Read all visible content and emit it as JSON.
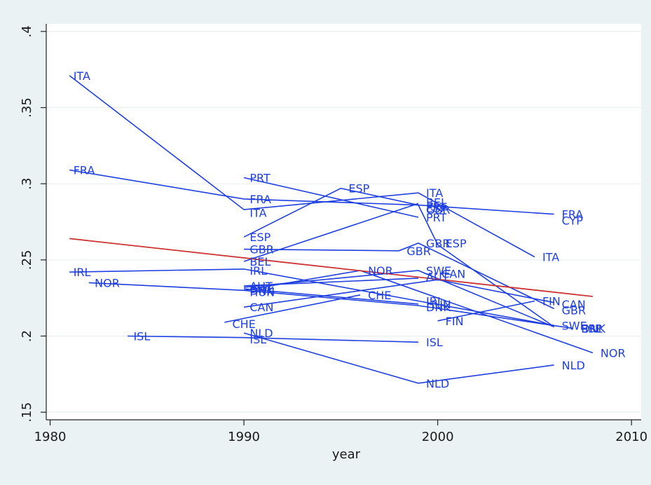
{
  "chart_data": {
    "type": "line",
    "title": "",
    "xlabel": "year",
    "ylabel": "",
    "xlim": [
      1979.8,
      2010.5
    ],
    "ylim": [
      0.145,
      0.405
    ],
    "xticks": [
      1980,
      1990,
      2000,
      2010
    ],
    "xtick_labels": [
      "1980",
      "1990",
      "2000",
      "2010"
    ],
    "yticks": [
      0.15,
      0.2,
      0.25,
      0.3,
      0.35,
      0.4
    ],
    "ytick_labels": [
      ".15",
      ".2",
      ".25",
      ".3",
      ".35",
      ".4"
    ],
    "grid": "horizontal",
    "legend": "none",
    "colors": {
      "series": "#1f3fe0",
      "fit": "#cc3333",
      "plot_bg": "#ffffff",
      "outer_bg": "#eaf2f3",
      "grid": "#e8eef0"
    },
    "fit_line": {
      "x": [
        1981,
        2008
      ],
      "y": [
        0.264,
        0.226
      ]
    },
    "series": [
      {
        "name": "ITA",
        "x": [
          1981,
          1990,
          1999,
          2005
        ],
        "y": [
          0.371,
          0.283,
          0.294,
          0.252
        ]
      },
      {
        "name": "FRA",
        "x": [
          1981,
          1990,
          1999,
          2006
        ],
        "y": [
          0.309,
          0.29,
          0.286,
          0.28
        ]
      },
      {
        "name": "PRT",
        "x": [
          1990,
          1999
        ],
        "y": [
          0.304,
          0.278
        ]
      },
      {
        "name": "ESP",
        "x": [
          1990,
          1995,
          1999,
          2000,
          2006
        ],
        "y": [
          0.265,
          0.297,
          0.286,
          0.26,
          0.206
        ]
      },
      {
        "name": "GBR",
        "x": [
          1990,
          1998,
          1999,
          2006
        ],
        "y": [
          0.257,
          0.256,
          0.261,
          0.218
        ]
      },
      {
        "name": "BEL",
        "x": [
          1990,
          1999
        ],
        "y": [
          0.249,
          0.287
        ]
      },
      {
        "name": "IRL",
        "x": [
          1981,
          1990,
          1999,
          2006
        ],
        "y": [
          0.242,
          0.244,
          0.223,
          0.207
        ]
      },
      {
        "name": "NOR",
        "x": [
          1982,
          1990,
          1996,
          2008
        ],
        "y": [
          0.235,
          0.23,
          0.243,
          0.189
        ]
      },
      {
        "name": "AUT",
        "x": [
          1990,
          1999
        ],
        "y": [
          0.233,
          0.238
        ]
      },
      {
        "name": "HUN",
        "x": [
          1990,
          1999
        ],
        "y": [
          0.231,
          0.221
        ]
      },
      {
        "name": "CAN",
        "x": [
          1990,
          2000,
          2006
        ],
        "y": [
          0.219,
          0.237,
          0.222
        ]
      },
      {
        "name": "CHE",
        "x": [
          1989,
          1996
        ],
        "y": [
          0.209,
          0.227
        ]
      },
      {
        "name": "SWE",
        "x": [
          1990,
          1999,
          2006
        ],
        "y": [
          0.232,
          0.243,
          0.206
        ]
      },
      {
        "name": "DNK",
        "x": [
          1990,
          1999,
          2007
        ],
        "y": [
          0.23,
          0.22,
          0.205
        ]
      },
      {
        "name": "FIN",
        "x": [
          2000,
          2005
        ],
        "y": [
          0.21,
          0.223
        ]
      },
      {
        "name": "ISL",
        "x": [
          1984,
          1990,
          1999
        ],
        "y": [
          0.2,
          0.199,
          0.196
        ]
      },
      {
        "name": "NLD",
        "x": [
          1990,
          1999,
          2006
        ],
        "y": [
          0.202,
          0.169,
          0.181
        ]
      },
      {
        "name": "CYP",
        "x": [
          2006
        ],
        "y": [
          0.276
        ]
      }
    ],
    "point_labels": [
      {
        "text": "ITA",
        "x": 1981.2,
        "y": 0.371
      },
      {
        "text": "FRA",
        "x": 1981.2,
        "y": 0.309
      },
      {
        "text": "IRL",
        "x": 1981.2,
        "y": 0.242
      },
      {
        "text": "NOR",
        "x": 1982.3,
        "y": 0.235
      },
      {
        "text": "ISL",
        "x": 1984.3,
        "y": 0.2
      },
      {
        "text": "PRT",
        "x": 1990.3,
        "y": 0.304
      },
      {
        "text": "FRA",
        "x": 1990.3,
        "y": 0.29
      },
      {
        "text": "ITA",
        "x": 1990.3,
        "y": 0.281
      },
      {
        "text": "ESP",
        "x": 1990.3,
        "y": 0.265
      },
      {
        "text": "GBR",
        "x": 1990.3,
        "y": 0.257
      },
      {
        "text": "BEL",
        "x": 1990.3,
        "y": 0.249
      },
      {
        "text": "IRL",
        "x": 1990.3,
        "y": 0.243
      },
      {
        "text": "AUT",
        "x": 1990.3,
        "y": 0.233
      },
      {
        "text": "SWE",
        "x": 1990.3,
        "y": 0.231
      },
      {
        "text": "DNK",
        "x": 1990.3,
        "y": 0.23
      },
      {
        "text": "HUN",
        "x": 1990.3,
        "y": 0.229
      },
      {
        "text": "CAN",
        "x": 1990.3,
        "y": 0.219
      },
      {
        "text": "CHE",
        "x": 1989.4,
        "y": 0.208
      },
      {
        "text": "NLD",
        "x": 1990.3,
        "y": 0.202
      },
      {
        "text": "ISL",
        "x": 1990.3,
        "y": 0.198
      },
      {
        "text": "ESP",
        "x": 1995.4,
        "y": 0.297
      },
      {
        "text": "NOR",
        "x": 1996.4,
        "y": 0.243
      },
      {
        "text": "CHE",
        "x": 1996.4,
        "y": 0.227
      },
      {
        "text": "GBR",
        "x": 1998.4,
        "y": 0.256
      },
      {
        "text": "ITA",
        "x": 1999.4,
        "y": 0.294
      },
      {
        "text": "BEL",
        "x": 1999.4,
        "y": 0.288
      },
      {
        "text": "PRT",
        "x": 1999.4,
        "y": 0.285
      },
      {
        "text": "ESP",
        "x": 1999.4,
        "y": 0.284
      },
      {
        "text": "GBR",
        "x": 1999.4,
        "y": 0.283
      },
      {
        "text": "PRT",
        "x": 1999.4,
        "y": 0.278
      },
      {
        "text": "GBR",
        "x": 1999.4,
        "y": 0.261
      },
      {
        "text": "ESP",
        "x": 2000.4,
        "y": 0.261
      },
      {
        "text": "SWE",
        "x": 1999.4,
        "y": 0.243
      },
      {
        "text": "CAN",
        "x": 2000.2,
        "y": 0.241
      },
      {
        "text": "AUT",
        "x": 1999.4,
        "y": 0.239
      },
      {
        "text": "IRL",
        "x": 1999.4,
        "y": 0.223
      },
      {
        "text": "HUN",
        "x": 1999.4,
        "y": 0.221
      },
      {
        "text": "DNK",
        "x": 1999.4,
        "y": 0.219
      },
      {
        "text": "FIN",
        "x": 2000.4,
        "y": 0.21
      },
      {
        "text": "ISL",
        "x": 1999.4,
        "y": 0.196
      },
      {
        "text": "NLD",
        "x": 1999.4,
        "y": 0.169
      },
      {
        "text": "ITA",
        "x": 2005.4,
        "y": 0.252
      },
      {
        "text": "FRA",
        "x": 2006.4,
        "y": 0.28
      },
      {
        "text": "CYP",
        "x": 2006.4,
        "y": 0.276
      },
      {
        "text": "FIN",
        "x": 2005.4,
        "y": 0.223
      },
      {
        "text": "CAN",
        "x": 2006.4,
        "y": 0.221
      },
      {
        "text": "GBR",
        "x": 2006.4,
        "y": 0.217
      },
      {
        "text": "SWE",
        "x": 2006.4,
        "y": 0.207
      },
      {
        "text": "ESP",
        "x": 2007.4,
        "y": 0.205
      },
      {
        "text": "DNK",
        "x": 2007.4,
        "y": 0.205
      },
      {
        "text": "IRL",
        "x": 2007.6,
        "y": 0.205
      },
      {
        "text": "NLD",
        "x": 2006.4,
        "y": 0.181
      },
      {
        "text": "NOR",
        "x": 2008.4,
        "y": 0.189
      }
    ]
  }
}
